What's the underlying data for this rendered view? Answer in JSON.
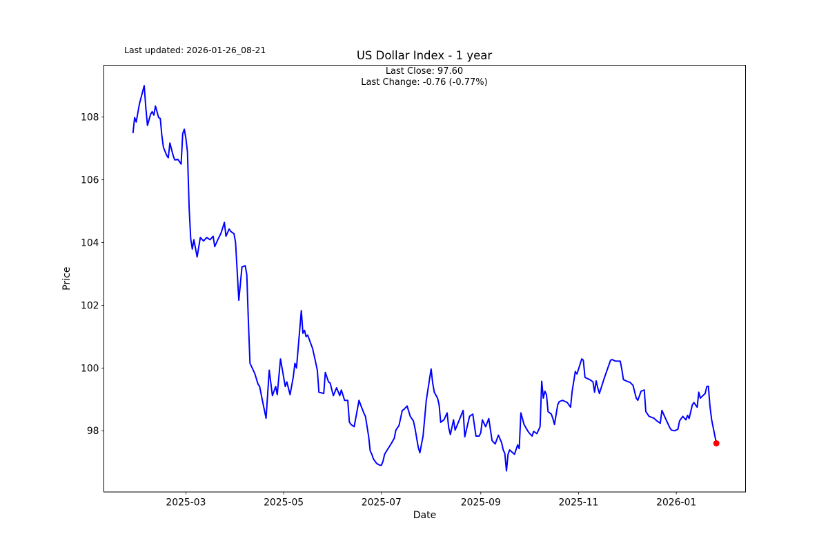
{
  "header": {
    "last_updated": "Last updated: 2026-01-26_08-21",
    "title": "US Dollar Index - 1 year",
    "subtitle_line1": "Last Close: 97.60",
    "subtitle_line2": "Last Change: -0.76 (-0.77%)"
  },
  "chart_data": {
    "type": "line",
    "title": "US Dollar Index - 1 year",
    "xlabel": "Date",
    "ylabel": "Price",
    "legend": "none",
    "grid": false,
    "line_color": "#0000ff",
    "line_width": 2,
    "marker_color": "#ff0000",
    "spine_color": "#000000",
    "background_color": "#ffffff",
    "last_close": 97.6,
    "last_change": "-0.76 (-0.77%)",
    "ylim": [
      96.05,
      109.65
    ],
    "x_margin_fraction": 0.05,
    "y_ticks": [
      98,
      100,
      102,
      104,
      106,
      108
    ],
    "x_ticks": [
      {
        "date": "2025-03-01",
        "label": "2025-03"
      },
      {
        "date": "2025-05-01",
        "label": "2025-05"
      },
      {
        "date": "2025-07-01",
        "label": "2025-07"
      },
      {
        "date": "2025-09-01",
        "label": "2025-09"
      },
      {
        "date": "2025-11-01",
        "label": "2025-11"
      },
      {
        "date": "2026-01-01",
        "label": "2026-01"
      }
    ],
    "series": [
      {
        "name": "US Dollar Index",
        "points": [
          [
            "2025-01-27",
            107.5
          ],
          [
            "2025-01-28",
            107.98
          ],
          [
            "2025-01-29",
            107.84
          ],
          [
            "2025-01-31",
            108.42
          ],
          [
            "2025-02-03",
            109.0
          ],
          [
            "2025-02-04",
            108.28
          ],
          [
            "2025-02-05",
            107.73
          ],
          [
            "2025-02-07",
            108.09
          ],
          [
            "2025-02-08",
            108.17
          ],
          [
            "2025-02-09",
            108.06
          ],
          [
            "2025-02-10",
            108.35
          ],
          [
            "2025-02-12",
            107.98
          ],
          [
            "2025-02-13",
            107.95
          ],
          [
            "2025-02-14",
            107.4
          ],
          [
            "2025-02-15",
            107.03
          ],
          [
            "2025-02-17",
            106.78
          ],
          [
            "2025-02-18",
            106.7
          ],
          [
            "2025-02-19",
            107.17
          ],
          [
            "2025-02-21",
            106.78
          ],
          [
            "2025-02-22",
            106.63
          ],
          [
            "2025-02-24",
            106.65
          ],
          [
            "2025-02-26",
            106.5
          ],
          [
            "2025-02-27",
            107.47
          ],
          [
            "2025-02-28",
            107.61
          ],
          [
            "2025-03-01",
            107.32
          ],
          [
            "2025-03-02",
            106.88
          ],
          [
            "2025-03-03",
            105.11
          ],
          [
            "2025-03-04",
            104.12
          ],
          [
            "2025-03-05",
            103.79
          ],
          [
            "2025-03-06",
            104.09
          ],
          [
            "2025-03-08",
            103.54
          ],
          [
            "2025-03-10",
            104.16
          ],
          [
            "2025-03-12",
            104.05
          ],
          [
            "2025-03-14",
            104.16
          ],
          [
            "2025-03-16",
            104.09
          ],
          [
            "2025-03-18",
            104.2
          ],
          [
            "2025-03-19",
            103.87
          ],
          [
            "2025-03-21",
            104.1
          ],
          [
            "2025-03-23",
            104.31
          ],
          [
            "2025-03-25",
            104.64
          ],
          [
            "2025-03-26",
            104.2
          ],
          [
            "2025-03-28",
            104.43
          ],
          [
            "2025-03-29",
            104.35
          ],
          [
            "2025-03-31",
            104.28
          ],
          [
            "2025-04-01",
            104.0
          ],
          [
            "2025-04-03",
            102.16
          ],
          [
            "2025-04-05",
            103.22
          ],
          [
            "2025-04-07",
            103.26
          ],
          [
            "2025-04-08",
            102.97
          ],
          [
            "2025-04-09",
            101.47
          ],
          [
            "2025-04-10",
            100.15
          ],
          [
            "2025-04-12",
            99.93
          ],
          [
            "2025-04-13",
            99.82
          ],
          [
            "2025-04-15",
            99.49
          ],
          [
            "2025-04-16",
            99.41
          ],
          [
            "2025-04-18",
            98.9
          ],
          [
            "2025-04-20",
            98.4
          ],
          [
            "2025-04-22",
            99.93
          ],
          [
            "2025-04-24",
            99.12
          ],
          [
            "2025-04-26",
            99.41
          ],
          [
            "2025-04-27",
            99.15
          ],
          [
            "2025-04-29",
            100.29
          ],
          [
            "2025-05-02",
            99.41
          ],
          [
            "2025-05-03",
            99.56
          ],
          [
            "2025-05-05",
            99.15
          ],
          [
            "2025-05-07",
            99.71
          ],
          [
            "2025-05-08",
            100.15
          ],
          [
            "2025-05-09",
            100.0
          ],
          [
            "2025-05-12",
            101.83
          ],
          [
            "2025-05-13",
            101.11
          ],
          [
            "2025-05-14",
            101.2
          ],
          [
            "2025-05-15",
            101.0
          ],
          [
            "2025-05-16",
            101.05
          ],
          [
            "2025-05-19",
            100.63
          ],
          [
            "2025-05-20",
            100.41
          ],
          [
            "2025-05-22",
            99.93
          ],
          [
            "2025-05-23",
            99.23
          ],
          [
            "2025-05-26",
            99.19
          ],
          [
            "2025-05-27",
            99.86
          ],
          [
            "2025-05-29",
            99.56
          ],
          [
            "2025-05-30",
            99.52
          ],
          [
            "2025-06-01",
            99.12
          ],
          [
            "2025-06-03",
            99.37
          ],
          [
            "2025-06-05",
            99.12
          ],
          [
            "2025-06-06",
            99.3
          ],
          [
            "2025-06-08",
            98.97
          ],
          [
            "2025-06-10",
            98.97
          ],
          [
            "2025-06-11",
            98.28
          ],
          [
            "2025-06-12",
            98.2
          ],
          [
            "2025-06-14",
            98.13
          ],
          [
            "2025-06-17",
            98.97
          ],
          [
            "2025-06-18",
            98.83
          ],
          [
            "2025-06-20",
            98.57
          ],
          [
            "2025-06-21",
            98.46
          ],
          [
            "2025-06-23",
            97.83
          ],
          [
            "2025-06-24",
            97.36
          ],
          [
            "2025-06-25",
            97.25
          ],
          [
            "2025-06-26",
            97.1
          ],
          [
            "2025-06-28",
            96.96
          ],
          [
            "2025-06-30",
            96.9
          ],
          [
            "2025-07-01",
            96.9
          ],
          [
            "2025-07-02",
            97.03
          ],
          [
            "2025-07-03",
            97.25
          ],
          [
            "2025-07-04",
            97.34
          ],
          [
            "2025-07-07",
            97.58
          ],
          [
            "2025-07-09",
            97.76
          ],
          [
            "2025-07-10",
            98.02
          ],
          [
            "2025-07-12",
            98.17
          ],
          [
            "2025-07-14",
            98.65
          ],
          [
            "2025-07-15",
            98.68
          ],
          [
            "2025-07-17",
            98.79
          ],
          [
            "2025-07-19",
            98.46
          ],
          [
            "2025-07-21",
            98.31
          ],
          [
            "2025-07-22",
            98.06
          ],
          [
            "2025-07-24",
            97.47
          ],
          [
            "2025-07-25",
            97.3
          ],
          [
            "2025-07-27",
            97.84
          ],
          [
            "2025-07-29",
            98.97
          ],
          [
            "2025-08-01",
            99.97
          ],
          [
            "2025-08-02",
            99.52
          ],
          [
            "2025-08-03",
            99.23
          ],
          [
            "2025-08-05",
            99.04
          ],
          [
            "2025-08-06",
            98.83
          ],
          [
            "2025-08-07",
            98.27
          ],
          [
            "2025-08-09",
            98.35
          ],
          [
            "2025-08-11",
            98.57
          ],
          [
            "2025-08-12",
            98.1
          ],
          [
            "2025-08-13",
            97.88
          ],
          [
            "2025-08-15",
            98.35
          ],
          [
            "2025-08-16",
            98.02
          ],
          [
            "2025-08-18",
            98.27
          ],
          [
            "2025-08-21",
            98.65
          ],
          [
            "2025-08-22",
            97.81
          ],
          [
            "2025-08-25",
            98.46
          ],
          [
            "2025-08-27",
            98.53
          ],
          [
            "2025-08-29",
            97.83
          ],
          [
            "2025-08-31",
            97.83
          ],
          [
            "2025-09-01",
            97.94
          ],
          [
            "2025-09-02",
            98.35
          ],
          [
            "2025-09-04",
            98.13
          ],
          [
            "2025-09-06",
            98.39
          ],
          [
            "2025-09-08",
            97.69
          ],
          [
            "2025-09-10",
            97.58
          ],
          [
            "2025-09-12",
            97.86
          ],
          [
            "2025-09-14",
            97.62
          ],
          [
            "2025-09-15",
            97.39
          ],
          [
            "2025-09-16",
            97.28
          ],
          [
            "2025-09-17",
            96.72
          ],
          [
            "2025-09-18",
            97.25
          ],
          [
            "2025-09-19",
            97.39
          ],
          [
            "2025-09-22",
            97.25
          ],
          [
            "2025-09-24",
            97.55
          ],
          [
            "2025-09-25",
            97.43
          ],
          [
            "2025-09-26",
            98.57
          ],
          [
            "2025-09-28",
            98.2
          ],
          [
            "2025-09-30",
            98.02
          ],
          [
            "2025-10-01",
            97.94
          ],
          [
            "2025-10-03",
            97.83
          ],
          [
            "2025-10-04",
            97.98
          ],
          [
            "2025-10-06",
            97.91
          ],
          [
            "2025-10-08",
            98.13
          ],
          [
            "2025-10-09",
            99.58
          ],
          [
            "2025-10-10",
            99.04
          ],
          [
            "2025-10-11",
            99.26
          ],
          [
            "2025-10-12",
            99.15
          ],
          [
            "2025-10-13",
            98.61
          ],
          [
            "2025-10-15",
            98.53
          ],
          [
            "2025-10-16",
            98.39
          ],
          [
            "2025-10-17",
            98.2
          ],
          [
            "2025-10-19",
            98.83
          ],
          [
            "2025-10-20",
            98.93
          ],
          [
            "2025-10-22",
            98.97
          ],
          [
            "2025-10-25",
            98.9
          ],
          [
            "2025-10-27",
            98.75
          ],
          [
            "2025-10-28",
            99.26
          ],
          [
            "2025-10-30",
            99.89
          ],
          [
            "2025-10-31",
            99.81
          ],
          [
            "2025-11-03",
            100.29
          ],
          [
            "2025-11-04",
            100.25
          ],
          [
            "2025-11-05",
            99.7
          ],
          [
            "2025-11-08",
            99.63
          ],
          [
            "2025-11-10",
            99.56
          ],
          [
            "2025-11-11",
            99.23
          ],
          [
            "2025-11-12",
            99.59
          ],
          [
            "2025-11-13",
            99.37
          ],
          [
            "2025-11-14",
            99.19
          ],
          [
            "2025-11-17",
            99.67
          ],
          [
            "2025-11-21",
            100.25
          ],
          [
            "2025-11-22",
            100.27
          ],
          [
            "2025-11-24",
            100.22
          ],
          [
            "2025-11-27",
            100.22
          ],
          [
            "2025-11-28",
            99.96
          ],
          [
            "2025-11-29",
            99.63
          ],
          [
            "2025-12-02",
            99.56
          ],
          [
            "2025-12-03",
            99.55
          ],
          [
            "2025-12-05",
            99.45
          ],
          [
            "2025-12-07",
            99.04
          ],
          [
            "2025-12-08",
            98.97
          ],
          [
            "2025-12-10",
            99.26
          ],
          [
            "2025-12-12",
            99.3
          ],
          [
            "2025-12-13",
            98.61
          ],
          [
            "2025-12-15",
            98.46
          ],
          [
            "2025-12-17",
            98.42
          ],
          [
            "2025-12-18",
            98.4
          ],
          [
            "2025-12-20",
            98.31
          ],
          [
            "2025-12-22",
            98.24
          ],
          [
            "2025-12-23",
            98.65
          ],
          [
            "2025-12-26",
            98.31
          ],
          [
            "2025-12-28",
            98.09
          ],
          [
            "2025-12-29",
            98.02
          ],
          [
            "2025-12-31",
            98.0
          ],
          [
            "2026-01-02",
            98.05
          ],
          [
            "2026-01-03",
            98.31
          ],
          [
            "2026-01-05",
            98.46
          ],
          [
            "2026-01-07",
            98.35
          ],
          [
            "2026-01-08",
            98.49
          ],
          [
            "2026-01-09",
            98.39
          ],
          [
            "2026-01-11",
            98.83
          ],
          [
            "2026-01-12",
            98.9
          ],
          [
            "2026-01-14",
            98.75
          ],
          [
            "2026-01-15",
            99.23
          ],
          [
            "2026-01-16",
            99.04
          ],
          [
            "2026-01-19",
            99.19
          ],
          [
            "2026-01-20",
            99.41
          ],
          [
            "2026-01-21",
            99.42
          ],
          [
            "2026-01-22",
            98.79
          ],
          [
            "2026-01-23",
            98.36
          ],
          [
            "2026-01-26",
            97.6
          ]
        ]
      }
    ]
  }
}
